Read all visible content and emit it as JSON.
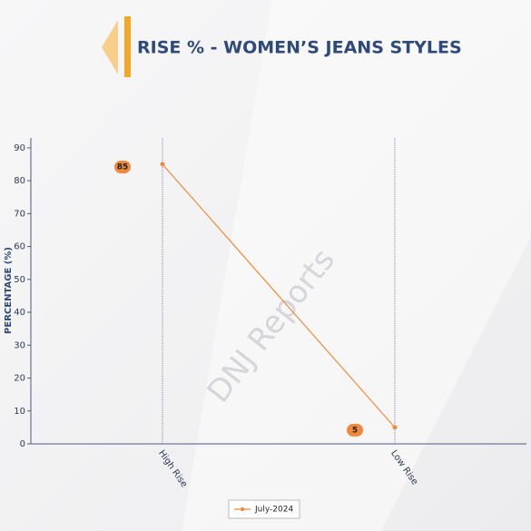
{
  "chart_data": {
    "type": "line",
    "title": "RISE % - WOMEN’S JEANS STYLES",
    "watermark": "DNJ Reports",
    "y_label": "PERCENTAGE (%)",
    "categories": [
      "High Rise",
      "Low Rise"
    ],
    "series": [
      {
        "name": "July-2024",
        "color": "#ef8a3a",
        "values": [
          85,
          5
        ]
      }
    ],
    "ylim": [
      0,
      93
    ],
    "yticks": [
      0,
      10,
      20,
      30,
      40,
      50,
      60,
      70,
      80,
      90
    ],
    "legend": "bottom"
  }
}
